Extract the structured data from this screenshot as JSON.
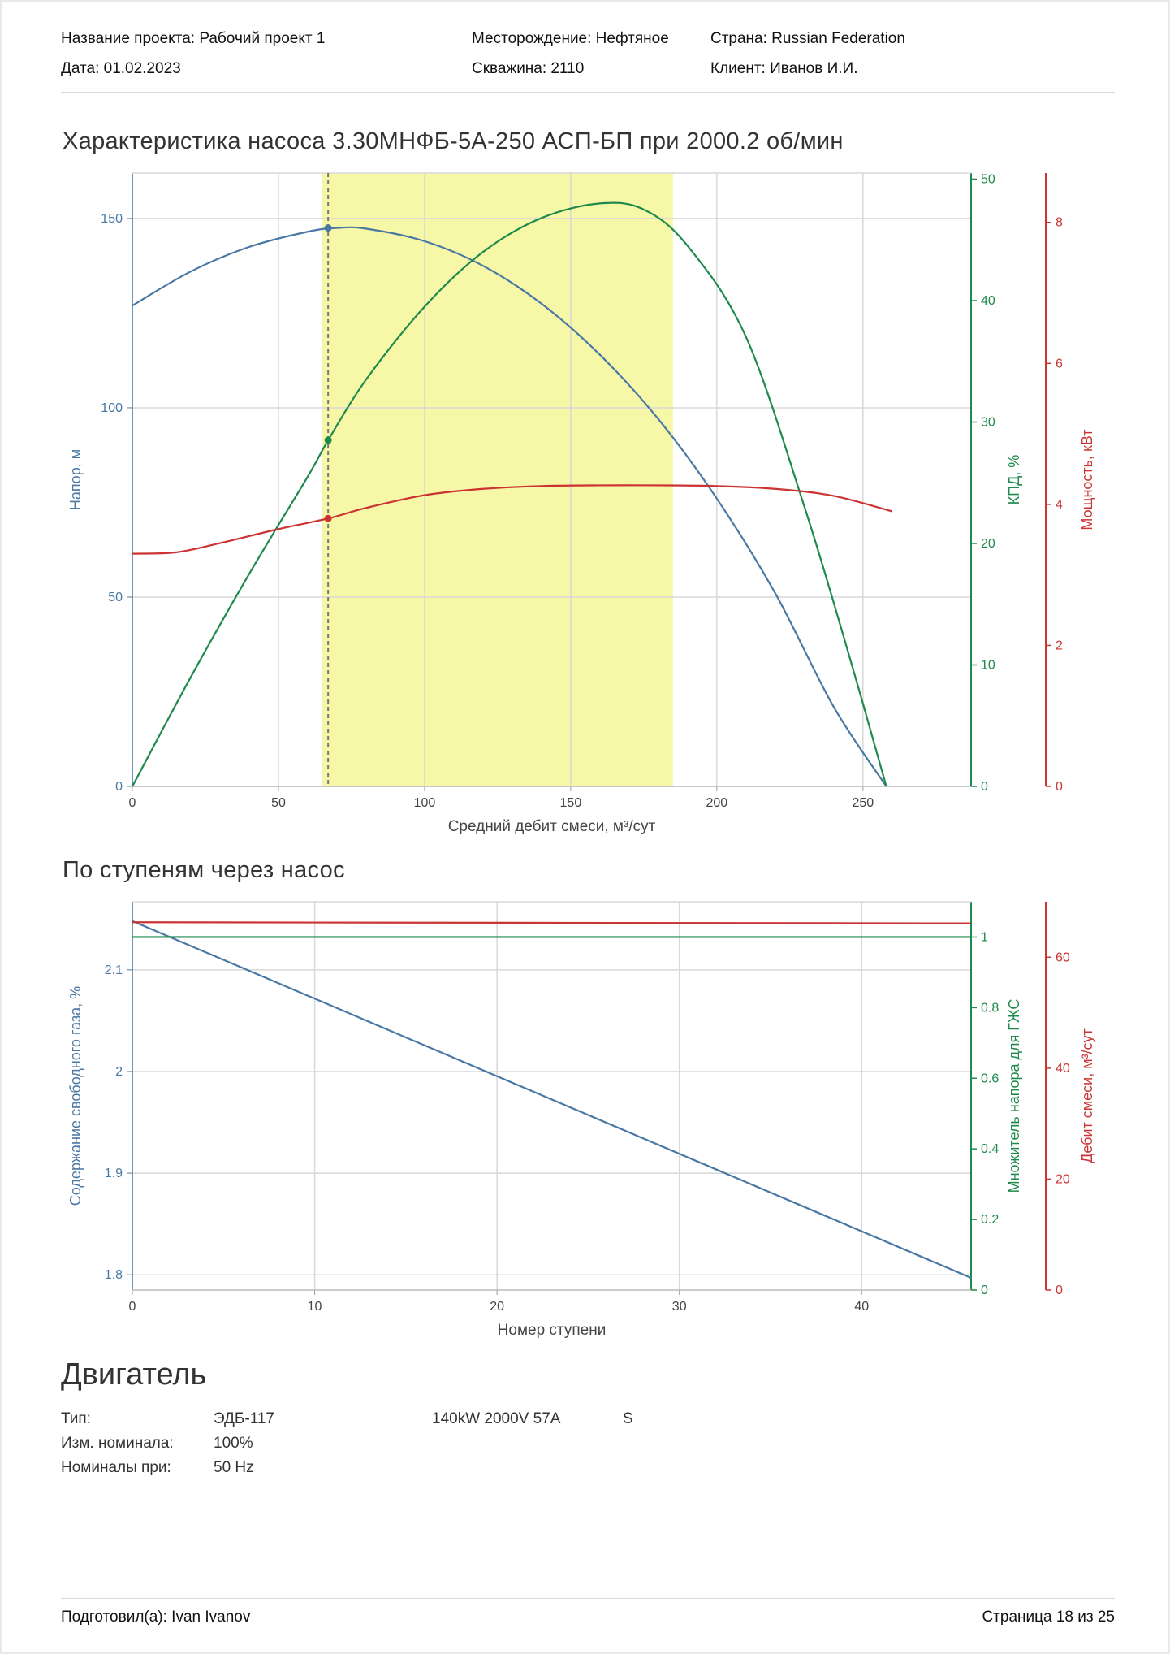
{
  "header": {
    "project": "Название проекта: Рабочий проект 1",
    "date": "Дата: 01.02.2023",
    "field": "Месторождение: Нефтяное",
    "well": "Скважина: 2110",
    "country": "Страна: Russian Federation",
    "client": "Клиент: Иванов И.И."
  },
  "chart1_title": "Характеристика насоса 3.30МНФБ-5А-250 АСП-БП при 2000.2 об/мин",
  "chart2_title": "По ступеням через насос",
  "motor": {
    "title": "Двигатель",
    "type_label": "Тип:",
    "type_value": "ЭДБ-117",
    "type_spec": "140kW 2000V 57A",
    "type_extra": "S",
    "nominal_label": "Изм. номинала:",
    "nominal_value": "100%",
    "freq_label": "Номиналы при:",
    "freq_value": "50 Hz"
  },
  "footer": {
    "prepared": "Подготовил(а): Ivan Ivanov",
    "page": "Страница 18 из 25"
  },
  "colors": {
    "head": "#4a78a4",
    "eff": "#1f8a4c",
    "power": "#cc3333",
    "band": "#f7f7a8",
    "grid": "#d8d8d8"
  },
  "chart_data": [
    {
      "type": "line",
      "title": "Характеристика насоса 3.30МНФБ-5А-250 АСП-БП при 2000.2 об/мин",
      "xlabel": "Средний дебит смеси, м³/сут",
      "xlim": [
        0,
        287
      ],
      "x_ticks": [
        "0",
        "50",
        "100",
        "150",
        "200",
        "250"
      ],
      "operating_range": [
        65,
        185
      ],
      "operating_point": {
        "x": 67,
        "head": 147.5,
        "eff": 28.5,
        "power": 3.8
      },
      "axes": [
        {
          "key": "head",
          "label": "Напор, м",
          "side": "left",
          "lim": [
            0,
            162
          ],
          "ticks": [
            "0",
            "50",
            "100",
            "150"
          ]
        },
        {
          "key": "eff",
          "label": "КПД, %",
          "side": "right",
          "lim": [
            0,
            50.5
          ],
          "ticks": [
            "0",
            "10",
            "20",
            "30",
            "40",
            "50"
          ]
        },
        {
          "key": "power",
          "label": "Мощность, кВт",
          "side": "right-outer",
          "lim": [
            0,
            8.7
          ],
          "ticks": [
            "0",
            "2",
            "4",
            "6",
            "8"
          ]
        }
      ],
      "series": [
        {
          "axis": "head",
          "x": [
            0,
            20,
            40,
            60,
            70,
            80,
            100,
            120,
            140,
            160,
            180,
            200,
            220,
            240,
            258
          ],
          "y": [
            127,
            136,
            142.5,
            146.5,
            147.5,
            147.3,
            144,
            137.5,
            127.5,
            114,
            97,
            76,
            51,
            21,
            0
          ]
        },
        {
          "axis": "eff",
          "x": [
            0,
            20,
            40,
            60,
            67,
            80,
            100,
            120,
            140,
            160,
            175,
            190,
            210,
            230,
            245,
            258
          ],
          "y": [
            0,
            9,
            17.5,
            25.5,
            28.5,
            33.5,
            39.5,
            44,
            46.8,
            48,
            47.5,
            44.5,
            37,
            23,
            11,
            0
          ]
        },
        {
          "axis": "power",
          "x": [
            0,
            15,
            30,
            50,
            67,
            80,
            100,
            120,
            140,
            160,
            180,
            200,
            220,
            240,
            260
          ],
          "y": [
            3.3,
            3.32,
            3.45,
            3.65,
            3.8,
            3.95,
            4.13,
            4.22,
            4.26,
            4.27,
            4.27,
            4.26,
            4.22,
            4.12,
            3.9
          ]
        }
      ]
    },
    {
      "type": "line",
      "title": "По ступеням через насос",
      "xlabel": "Номер ступени",
      "xlim": [
        0,
        46
      ],
      "x_ticks": [
        "0",
        "10",
        "20",
        "30",
        "40"
      ],
      "axes": [
        {
          "key": "gas",
          "label": "Содержание свободного газа, %",
          "side": "left",
          "lim": [
            1.785,
            2.167
          ],
          "ticks": [
            "1.8",
            "1.9",
            "2",
            "2.1"
          ]
        },
        {
          "key": "mult",
          "label": "Множитель напора для ГЖС",
          "side": "right",
          "lim": [
            0,
            1.1
          ],
          "ticks": [
            "0",
            "0.2",
            "0.4",
            "0.6",
            "0.8",
            "1"
          ]
        },
        {
          "key": "rate",
          "label": "Дебит смеси, м³/сут",
          "side": "right-outer",
          "lim": [
            0,
            70
          ],
          "ticks": [
            "0",
            "20",
            "40",
            "60"
          ]
        }
      ],
      "series": [
        {
          "axis": "gas",
          "x": [
            0,
            46
          ],
          "y": [
            2.148,
            1.797
          ]
        },
        {
          "axis": "mult",
          "x": [
            0,
            46
          ],
          "y": [
            1.0,
            1.0
          ]
        },
        {
          "axis": "rate",
          "x": [
            0,
            46
          ],
          "y": [
            66.3,
            66.1
          ]
        }
      ]
    }
  ]
}
